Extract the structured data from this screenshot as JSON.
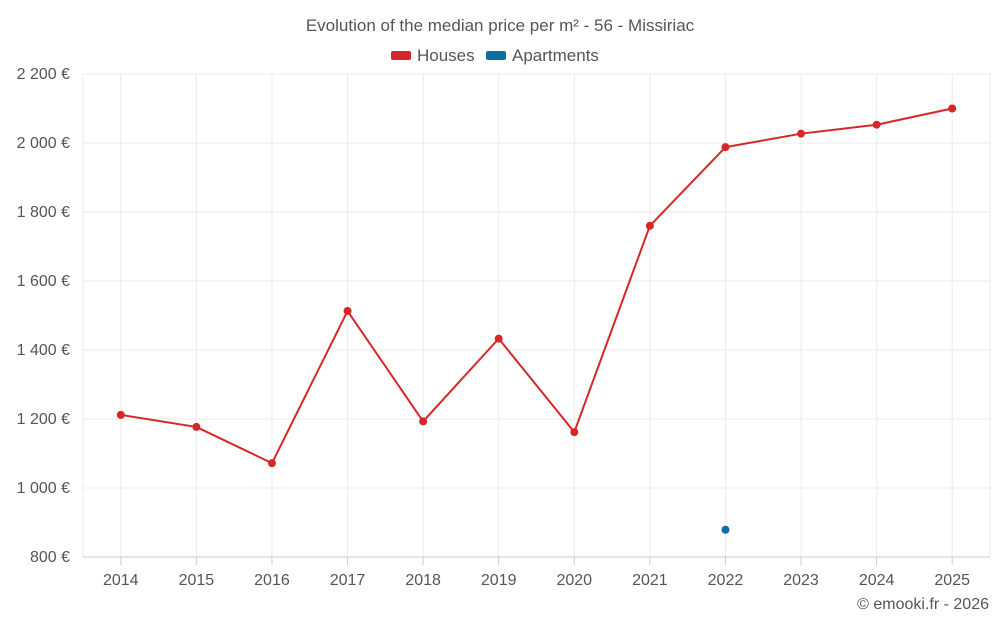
{
  "chart_data": {
    "type": "line",
    "title": "Evolution of the median price per m² - 56 - Missiriac",
    "categories": [
      "2014",
      "2015",
      "2016",
      "2017",
      "2018",
      "2019",
      "2020",
      "2021",
      "2022",
      "2023",
      "2024",
      "2025"
    ],
    "series": [
      {
        "name": "Houses",
        "color": "#d62728",
        "values": [
          1212,
          1177,
          1072,
          1513,
          1193,
          1433,
          1162,
          1760,
          1988,
          2027,
          2053,
          2100
        ]
      },
      {
        "name": "Apartments",
        "color": "#0b6fa4",
        "values": [
          null,
          null,
          null,
          null,
          null,
          null,
          null,
          null,
          879,
          null,
          null,
          null
        ]
      }
    ],
    "ylim": [
      800,
      2200
    ],
    "yticks": [
      800,
      1000,
      1200,
      1400,
      1600,
      1800,
      2000,
      2200
    ],
    "ytick_labels": [
      "800 €",
      "1 000 €",
      "1 200 €",
      "1 400 €",
      "1 600 €",
      "1 800 €",
      "2 000 €",
      "2 200 €"
    ],
    "grid": true,
    "legend": "top-center",
    "credit": "© emooki.fr - 2026"
  }
}
